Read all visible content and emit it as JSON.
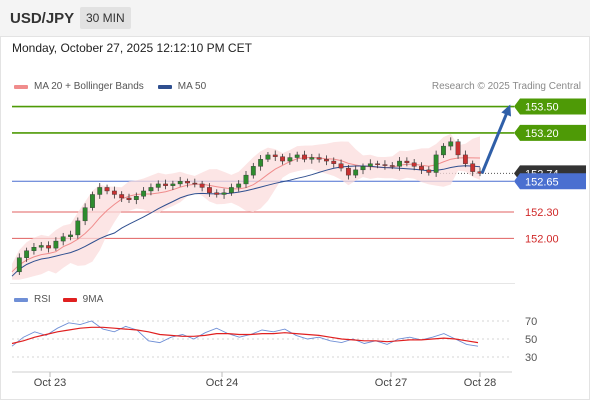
{
  "header": {
    "symbol": "USD/JPY",
    "timeframe": "30 MIN",
    "datetime": "Monday, October 27, 2025 12:12:10 PM CET",
    "credit": "Research © 2025 Trading Central"
  },
  "legend_main": [
    {
      "label": "MA 20 + Bollinger Bands",
      "color": "#f08c8c"
    },
    {
      "label": "MA 50",
      "color": "#2f4f8f"
    }
  ],
  "legend_rsi": [
    {
      "label": "RSI",
      "color": "#6f8fd6"
    },
    {
      "label": "9MA",
      "color": "#e02020"
    }
  ],
  "colors": {
    "resistance": "#4e9a06",
    "support": "#e06060",
    "pivot": "#4a6fd0",
    "current": "#333333",
    "arrow": "#2f5fa8"
  },
  "chart_data": [
    {
      "type": "candlestick",
      "title": "USD/JPY 30 MIN",
      "x_ticks": [
        "Oct 23",
        "Oct 24",
        "Oct 27",
        "Oct 28"
      ],
      "ylim": [
        151.55,
        153.62
      ],
      "levels": [
        {
          "value": 153.5,
          "label": "153.50",
          "kind": "resistance"
        },
        {
          "value": 153.2,
          "label": "153.20",
          "kind": "resistance"
        },
        {
          "value": 152.74,
          "label": "152.74",
          "kind": "current"
        },
        {
          "value": 152.65,
          "label": "152.65",
          "kind": "pivot"
        },
        {
          "value": 152.3,
          "label": "152.30",
          "kind": "support"
        },
        {
          "value": 152.0,
          "label": "152.00",
          "kind": "support"
        }
      ],
      "close_path": [
        151.62,
        151.78,
        151.86,
        151.9,
        151.92,
        151.89,
        151.97,
        152.02,
        152.04,
        152.2,
        152.35,
        152.5,
        152.58,
        152.54,
        152.5,
        152.46,
        152.44,
        152.48,
        152.54,
        152.58,
        152.62,
        152.6,
        152.62,
        152.65,
        152.63,
        152.62,
        152.58,
        152.52,
        152.5,
        152.52,
        152.58,
        152.62,
        152.72,
        152.82,
        152.9,
        152.95,
        152.93,
        152.88,
        152.92,
        152.95,
        152.9,
        152.92,
        152.9,
        152.88,
        152.85,
        152.8,
        152.72,
        152.78,
        152.82,
        152.85,
        152.84,
        152.83,
        152.82,
        152.88,
        152.86,
        152.82,
        152.78,
        152.75,
        152.95,
        153.05,
        153.1,
        152.95,
        152.85,
        152.76,
        152.74
      ]
    },
    {
      "type": "line",
      "title": "RSI",
      "y_ticks": [
        30,
        50,
        70
      ],
      "ylim": [
        20,
        80
      ],
      "series": [
        {
          "name": "RSI",
          "values": [
            42,
            52,
            58,
            54,
            62,
            68,
            66,
            70,
            61,
            58,
            64,
            60,
            48,
            46,
            52,
            55,
            50,
            57,
            62,
            56,
            52,
            55,
            60,
            58,
            61,
            54,
            50,
            52,
            48,
            46,
            50,
            45,
            48,
            44,
            50,
            52,
            49,
            52,
            56,
            50,
            44,
            42
          ]
        },
        {
          "name": "9MA",
          "values": [
            45,
            48,
            52,
            55,
            58,
            60,
            62,
            63,
            63,
            62,
            61,
            60,
            58,
            55,
            54,
            53,
            53,
            54,
            56,
            56,
            55,
            55,
            56,
            56,
            57,
            56,
            55,
            54,
            52,
            50,
            49,
            48,
            48,
            47,
            48,
            49,
            49,
            50,
            51,
            50,
            48,
            46
          ]
        }
      ]
    }
  ]
}
